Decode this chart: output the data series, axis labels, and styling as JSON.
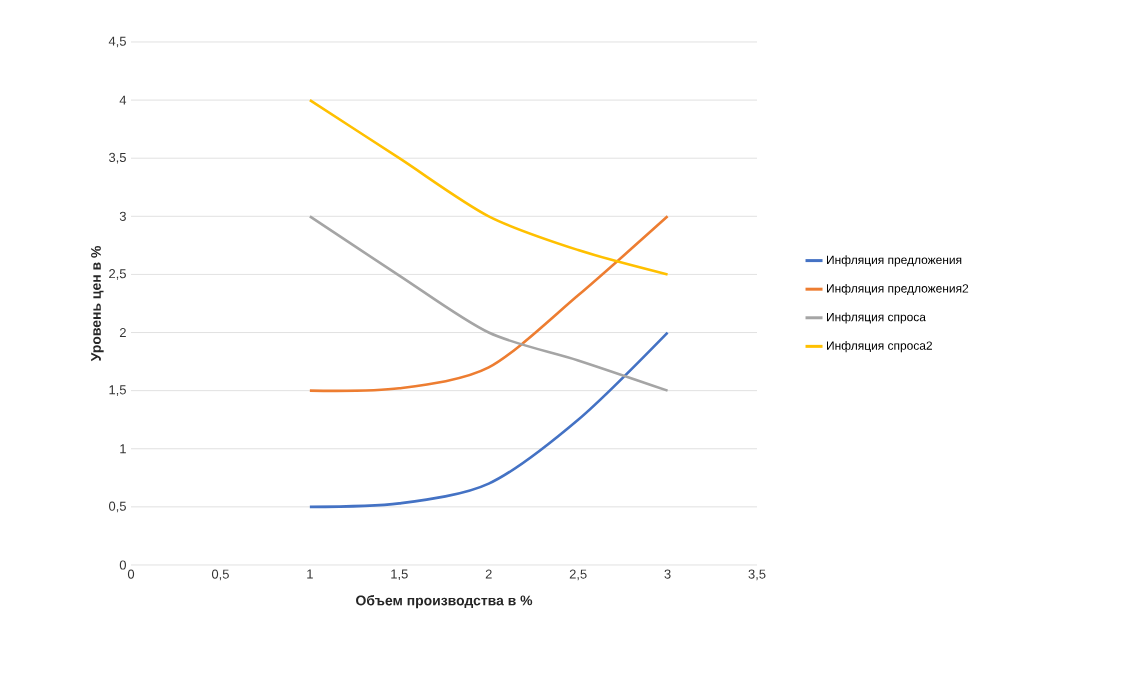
{
  "chart_data": {
    "type": "line",
    "xlabel": "Объем производства в %",
    "ylabel": "Уровень цен в %",
    "x": [
      1,
      1.5,
      2,
      2.5,
      3
    ],
    "series": [
      {
        "name": "Инфляция  предложения",
        "color": "#4472c4",
        "values": [
          0.5,
          0.53,
          0.7,
          1.25,
          2
        ]
      },
      {
        "name": "Инфляция  предложения2",
        "color": "#ed7d31",
        "values": [
          1.5,
          1.52,
          1.7,
          2.32,
          3
        ]
      },
      {
        "name": "Инфляция  спроса",
        "color": "#a5a5a5",
        "values": [
          3,
          2.49,
          2,
          1.76,
          1.5
        ]
      },
      {
        "name": "Инфляция  спроса2",
        "color": "#ffc000",
        "values": [
          4,
          3.5,
          3,
          2.71,
          2.5
        ]
      }
    ],
    "xlim": [
      0,
      3.5
    ],
    "ylim": [
      0,
      4.5
    ],
    "xticks": [
      0,
      {
        "value": 0.5,
        "label": "0,5"
      },
      1,
      {
        "value": 1.5,
        "label": "1,5"
      },
      2,
      {
        "value": 2.5,
        "label": "2,5"
      },
      3,
      {
        "value": 3.5,
        "label": "3,5"
      }
    ],
    "yticks": [
      0,
      {
        "value": 0.5,
        "label": "0,5"
      },
      1,
      {
        "value": 1.5,
        "label": "1,5"
      },
      2,
      {
        "value": 2.5,
        "label": "2,5"
      },
      3,
      {
        "value": 3.5,
        "label": "3,5"
      },
      4,
      {
        "value": 4.5,
        "label": "4,5"
      }
    ],
    "grid": "y",
    "legend": "right",
    "marker": "none",
    "line_style": "solid"
  }
}
